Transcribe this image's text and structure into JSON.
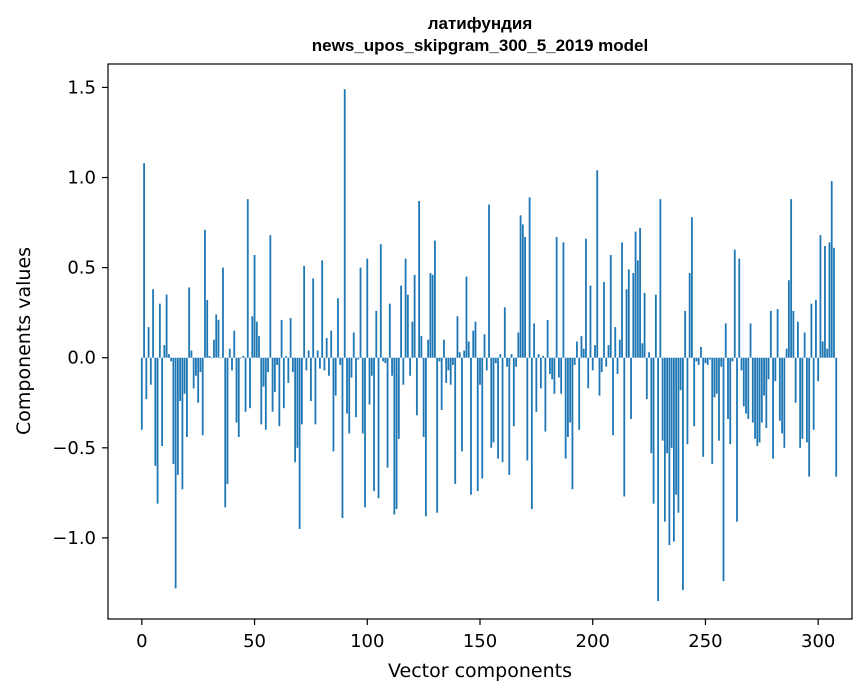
{
  "chart_data": {
    "type": "bar",
    "title": "латифундия",
    "subtitle": "news_upos_skipgram_300_5_2019 model",
    "xlabel": "Vector components",
    "ylabel": "Components values",
    "xlim": [
      -15,
      315
    ],
    "ylim": [
      -1.45,
      1.63
    ],
    "xticks": [
      0,
      50,
      100,
      150,
      200,
      250,
      300
    ],
    "xtick_labels": [
      "0",
      "50",
      "100",
      "150",
      "200",
      "250",
      "300"
    ],
    "yticks": [
      -1.0,
      -0.5,
      0.0,
      0.5,
      1.0,
      1.5
    ],
    "ytick_labels": [
      "−1.0",
      "−0.5",
      "0.0",
      "0.5",
      "1.0",
      "1.5"
    ],
    "grid": false,
    "bar_color": "#1f77b4",
    "values": [
      -0.4,
      1.08,
      -0.23,
      0.17,
      -0.15,
      0.38,
      -0.6,
      -0.81,
      0.3,
      -0.49,
      0.07,
      0.35,
      0.02,
      -0.02,
      -0.59,
      -1.28,
      -0.65,
      -0.24,
      -0.73,
      -0.2,
      -0.44,
      0.39,
      0.04,
      -0.17,
      -0.1,
      -0.25,
      -0.08,
      -0.43,
      0.71,
      0.32,
      0.01,
      0.0,
      0.1,
      0.24,
      0.21,
      0.0,
      0.5,
      -0.83,
      -0.7,
      0.05,
      -0.07,
      0.15,
      -0.36,
      -0.44,
      0.0,
      0.01,
      -0.3,
      0.88,
      -0.28,
      0.23,
      0.57,
      0.2,
      0.12,
      -0.37,
      -0.16,
      -0.4,
      -0.08,
      0.68,
      -0.3,
      -0.19,
      -0.04,
      -0.38,
      0.21,
      -0.28,
      0.01,
      -0.14,
      0.22,
      -0.08,
      -0.58,
      -0.5,
      -0.95,
      -0.37,
      0.51,
      -0.07,
      0.04,
      -0.24,
      0.44,
      -0.37,
      0.04,
      -0.06,
      0.54,
      -0.07,
      0.11,
      -0.1,
      0.15,
      -0.52,
      -0.21,
      0.33,
      -0.04,
      -0.89,
      1.49,
      -0.31,
      -0.42,
      -0.11,
      0.14,
      -0.33,
      -0.01,
      0.5,
      -0.42,
      -0.83,
      0.55,
      -0.26,
      -0.1,
      -0.74,
      0.26,
      -0.78,
      0.63,
      -0.02,
      -0.03,
      -0.61,
      0.3,
      -0.1,
      -0.87,
      -0.84,
      -0.45,
      0.4,
      -0.15,
      0.55,
      0.35,
      -0.1,
      0.2,
      0.46,
      -0.32,
      0.87,
      0.12,
      -0.44,
      -0.88,
      0.1,
      0.47,
      0.46,
      0.65,
      -0.86,
      -0.02,
      -0.29,
      0.1,
      -0.14,
      -0.07,
      -0.15,
      -0.04,
      -0.7,
      0.23,
      0.03,
      -0.52,
      0.04,
      0.45,
      0.09,
      -0.76,
      0.15,
      0.2,
      -0.74,
      -0.15,
      -0.67,
      0.13,
      -0.07,
      0.85,
      -0.5,
      -0.47,
      -0.03,
      -0.56,
      0.02,
      -0.58,
      0.28,
      -0.05,
      -0.65,
      0.02,
      -0.38,
      -0.05,
      0.14,
      0.79,
      0.74,
      0.67,
      -0.57,
      0.89,
      -0.84,
      0.19,
      -0.3,
      0.02,
      -0.17,
      0.01,
      -0.41,
      0.21,
      -0.09,
      -0.12,
      -0.2,
      0.67,
      -0.11,
      -0.2,
      0.64,
      -0.56,
      -0.44,
      -0.36,
      -0.73,
      -0.04,
      0.09,
      -0.4,
      0.12,
      0.05,
      0.66,
      -0.17,
      0.4,
      -0.07,
      0.07,
      1.04,
      -0.21,
      -0.08,
      0.42,
      -0.05,
      0.07,
      0.57,
      -0.43,
      0.17,
      -0.09,
      0.1,
      0.64,
      -0.77,
      0.38,
      0.49,
      -0.34,
      0.47,
      0.7,
      0.54,
      0.72,
      0.08,
      0.36,
      -0.23,
      0.03,
      -0.53,
      -0.81,
      0.35,
      -1.35,
      0.88,
      -0.46,
      -0.91,
      -0.53,
      -1.04,
      -0.5,
      -1.02,
      -0.76,
      -0.86,
      -0.18,
      -1.29,
      0.26,
      -0.48,
      0.47,
      0.78,
      -0.38,
      -0.02,
      -0.04,
      0.06,
      -0.55,
      -0.03,
      -0.04,
      -0.01,
      -0.59,
      -0.22,
      -0.2,
      -0.46,
      -0.05,
      -1.24,
      0.19,
      -0.34,
      -0.48,
      -0.02,
      0.6,
      -0.91,
      0.55,
      -0.07,
      -0.27,
      -0.31,
      -0.34,
      0.19,
      -0.36,
      -0.45,
      -0.49,
      -0.47,
      -0.36,
      -0.21,
      -0.39,
      -0.12,
      0.26,
      -0.56,
      -0.13,
      0.27,
      -0.35,
      -0.42,
      -0.5,
      0.05,
      0.43,
      0.88,
      0.26,
      -0.25,
      0.2,
      -0.5,
      -0.45,
      0.14,
      -0.47,
      -0.66,
      0.3,
      -0.4,
      0.32,
      -0.13,
      0.68,
      0.09,
      0.62,
      0.05,
      0.64,
      0.98,
      0.61,
      -0.66
    ]
  }
}
